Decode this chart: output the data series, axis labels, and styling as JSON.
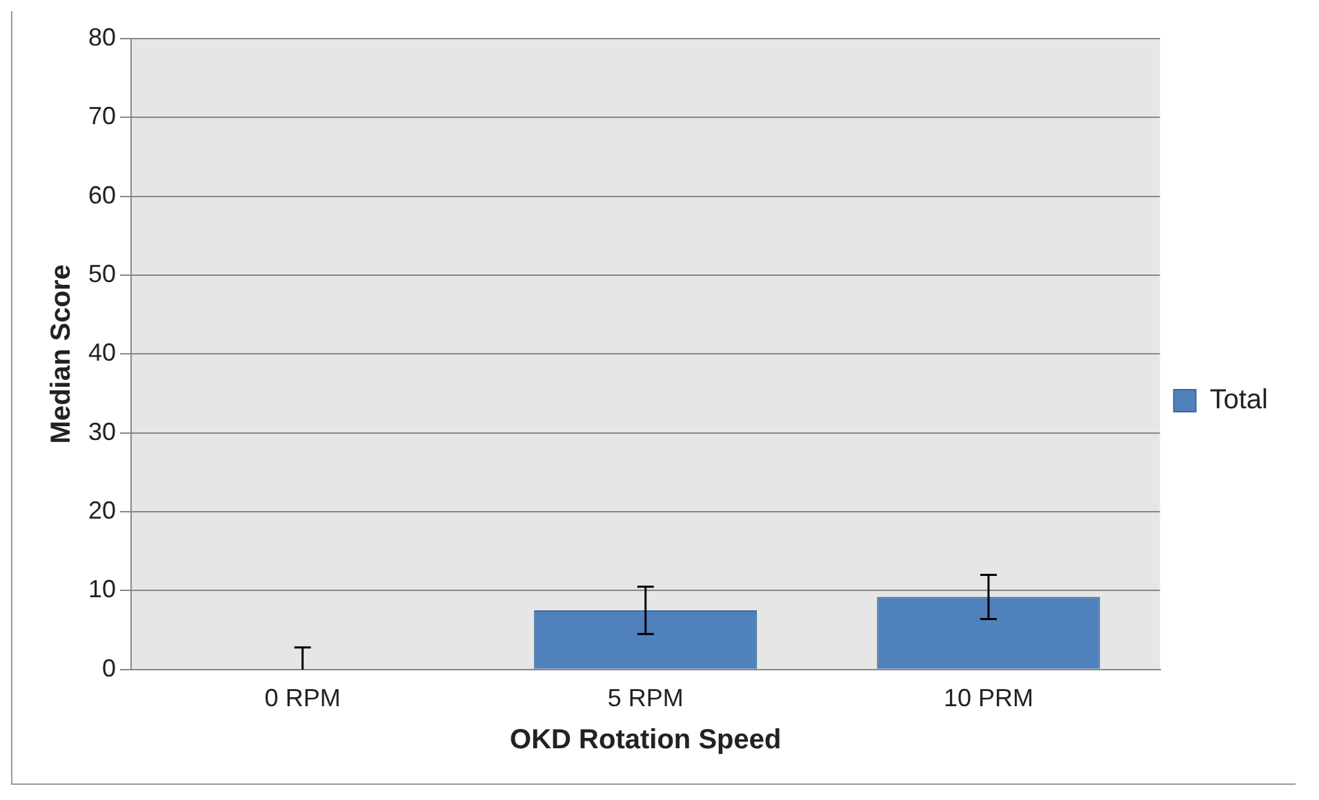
{
  "chart_data": {
    "type": "bar",
    "xlabel": "OKD Rotation Speed",
    "ylabel": "Median Score",
    "categories": [
      "0 RPM",
      "5 RPM",
      "10 PRM"
    ],
    "series": [
      {
        "name": "Total",
        "color": "#4f81bd",
        "values": [
          0,
          7.5,
          9.2
        ],
        "errors": [
          [
            0,
            2.8
          ],
          3,
          2.8
        ]
      }
    ],
    "ylim": [
      0,
      80
    ],
    "yticks": [
      0,
      10,
      20,
      30,
      40,
      50,
      60,
      70,
      80
    ],
    "grid": "y",
    "legend": "right"
  }
}
